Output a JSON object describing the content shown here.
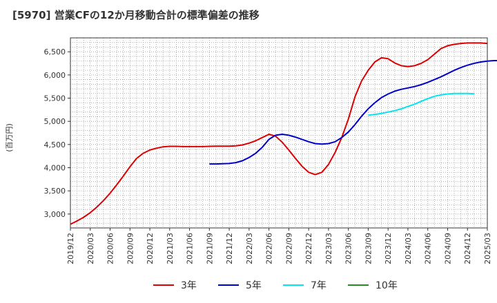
{
  "chart_data": {
    "type": "line",
    "title": "[5970]  営業CFの12か月移動合計の標準偏差の推移",
    "ylabel": "(百万円)",
    "xlabel": "",
    "x_ticks": [
      "2019/12",
      "2020/03",
      "2020/06",
      "2020/09",
      "2020/12",
      "2021/03",
      "2021/06",
      "2021/09",
      "2021/12",
      "2022/03",
      "2022/06",
      "2022/09",
      "2022/12",
      "2023/03",
      "2023/06",
      "2023/09",
      "2023/12",
      "2024/03",
      "2024/06",
      "2024/09",
      "2024/12",
      "2025/03"
    ],
    "y_ticks": [
      3000,
      3500,
      4000,
      4500,
      5000,
      5500,
      6000,
      6500
    ],
    "y_tick_labels": [
      "3,000",
      "3,500",
      "4,000",
      "4,500",
      "5,000",
      "5,500",
      "6,000",
      "6,500"
    ],
    "ylim": [
      2700,
      6800
    ],
    "grid": true,
    "legend_position": "bottom",
    "series": [
      {
        "name": "3年",
        "color": "#dd0000",
        "start": 0,
        "values": [
          2780,
          2850,
          2930,
          3030,
          3150,
          3290,
          3450,
          3630,
          3820,
          4020,
          4200,
          4310,
          4380,
          4420,
          4450,
          4460,
          4460,
          4455,
          4455,
          4455,
          4455,
          4460,
          4465,
          4465,
          4465,
          4470,
          4490,
          4530,
          4580,
          4650,
          4720,
          4680,
          4550,
          4380,
          4200,
          4030,
          3900,
          3850,
          3900,
          4070,
          4330,
          4650,
          5050,
          5530,
          5870,
          6100,
          6280,
          6370,
          6350,
          6260,
          6200,
          6180,
          6200,
          6250,
          6330,
          6450,
          6570,
          6630,
          6660,
          6680,
          6690,
          6690,
          6690,
          6680
        ]
      },
      {
        "name": "5年",
        "color": "#0000cc",
        "start": 21,
        "values": [
          4080,
          4080,
          4085,
          4090,
          4110,
          4150,
          4220,
          4310,
          4440,
          4610,
          4700,
          4720,
          4700,
          4660,
          4610,
          4560,
          4520,
          4510,
          4520,
          4560,
          4650,
          4770,
          4930,
          5110,
          5270,
          5400,
          5510,
          5590,
          5650,
          5690,
          5720,
          5750,
          5790,
          5840,
          5900,
          5960,
          6030,
          6100,
          6160,
          6210,
          6250,
          6280,
          6300,
          6310,
          6310,
          6310
        ]
      },
      {
        "name": "7年",
        "color": "#00e5ee",
        "start": 45,
        "values": [
          5130,
          5150,
          5170,
          5200,
          5230,
          5270,
          5320,
          5370,
          5430,
          5490,
          5540,
          5570,
          5590,
          5600,
          5600,
          5600,
          5595
        ]
      },
      {
        "name": "10年",
        "color": "#228b22",
        "start": 0,
        "values": []
      }
    ]
  }
}
